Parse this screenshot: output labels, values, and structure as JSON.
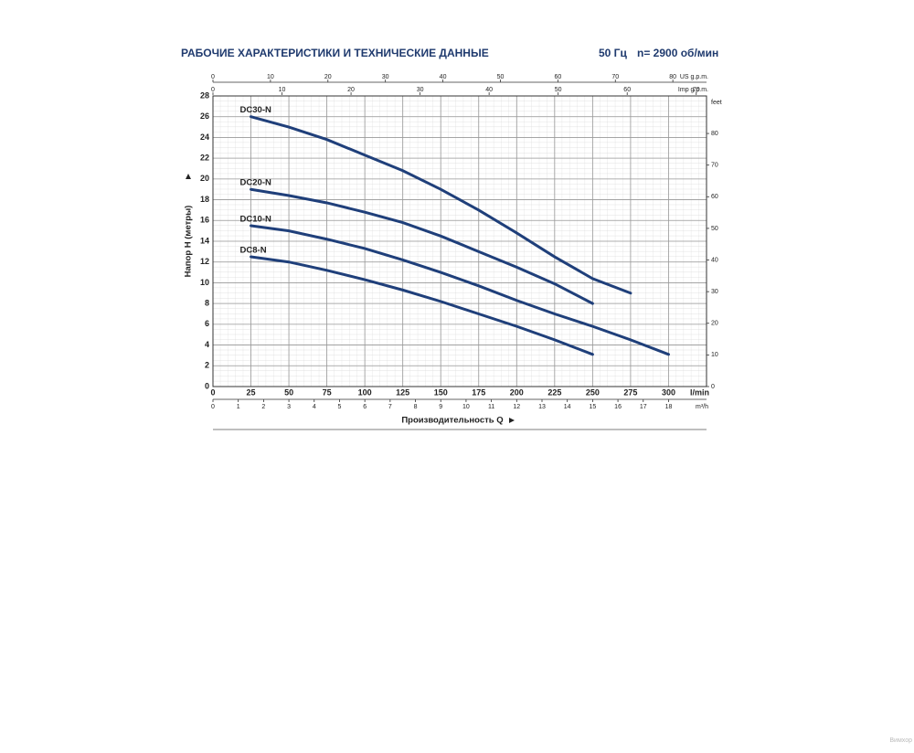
{
  "chart_data": {
    "type": "line",
    "title": "РАБОЧИЕ ХАРАКТЕРИСТИКИ И ТЕХНИЧЕСКИЕ ДАННЫЕ",
    "frequency": "50 Гц",
    "speed": "n= 2900 об/мин",
    "x_label": "Производительность Q",
    "y_label": "Напор H (метры)",
    "x_unit": "l/min",
    "xlim": [
      0,
      325
    ],
    "xticks": [
      0,
      25,
      50,
      75,
      100,
      125,
      150,
      175,
      200,
      225,
      250,
      275,
      300
    ],
    "ylim": [
      0,
      28
    ],
    "yticks": [
      0,
      2,
      4,
      6,
      8,
      10,
      12,
      14,
      16,
      18,
      20,
      22,
      24,
      26,
      28
    ],
    "grid": true,
    "secondary_axes": [
      {
        "position": "top",
        "unit": "US g.p.m.",
        "lim": [
          0,
          85.86
        ],
        "ticks": [
          0,
          10,
          20,
          30,
          40,
          50,
          60,
          70,
          80
        ]
      },
      {
        "position": "top",
        "unit": "Imp g.p.m.",
        "lim": [
          0,
          71.49
        ],
        "ticks": [
          0,
          10,
          20,
          30,
          40,
          50,
          60,
          70
        ]
      },
      {
        "position": "bottom",
        "unit": "m³/h",
        "lim": [
          0,
          19.5
        ],
        "ticks": [
          0,
          1,
          2,
          3,
          4,
          5,
          6,
          7,
          8,
          9,
          10,
          11,
          12,
          13,
          14,
          15,
          16,
          17,
          18
        ]
      },
      {
        "position": "right",
        "unit": "feet",
        "lim": [
          0,
          91.86
        ],
        "ticks": [
          0,
          10,
          20,
          30,
          40,
          50,
          60,
          70,
          80
        ]
      }
    ],
    "series": [
      {
        "name": "DC30-N",
        "color": "#1f3f7a",
        "x": [
          25,
          50,
          75,
          100,
          125,
          150,
          175,
          200,
          225,
          250,
          275
        ],
        "values": [
          26,
          25,
          23.8,
          22.3,
          20.8,
          19,
          17,
          14.8,
          12.5,
          10.4,
          9
        ]
      },
      {
        "name": "DC20-N",
        "color": "#1f3f7a",
        "x": [
          25,
          50,
          75,
          100,
          125,
          150,
          175,
          200,
          225,
          250
        ],
        "values": [
          19,
          18.4,
          17.7,
          16.8,
          15.8,
          14.5,
          13,
          11.5,
          9.9,
          8
        ]
      },
      {
        "name": "DC10-N",
        "color": "#1f3f7a",
        "x": [
          25,
          50,
          75,
          100,
          125,
          150,
          175,
          200,
          225,
          250,
          275,
          300
        ],
        "values": [
          15.5,
          15,
          14.2,
          13.3,
          12.2,
          11,
          9.7,
          8.3,
          7,
          5.8,
          4.5,
          3.1
        ]
      },
      {
        "name": "DC8-N",
        "color": "#1f3f7a",
        "x": [
          25,
          50,
          75,
          100,
          125,
          150,
          175,
          200,
          225,
          250
        ],
        "values": [
          12.5,
          12,
          11.2,
          10.3,
          9.3,
          8.2,
          7,
          5.8,
          4.5,
          3.1
        ]
      }
    ]
  },
  "watermark": "Вимхор"
}
